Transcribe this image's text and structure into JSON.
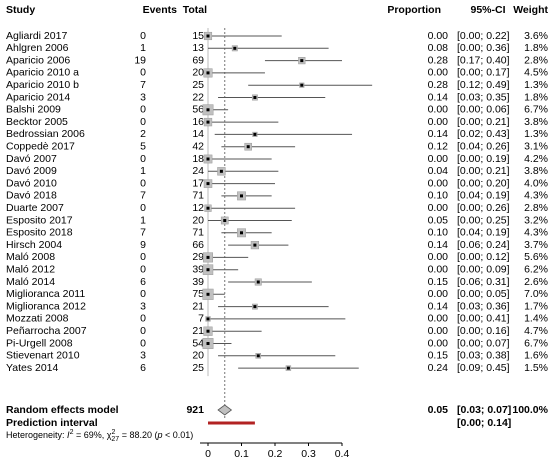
{
  "chart_data": {
    "type": "forest",
    "columns": [
      "Study",
      "Events",
      "Total",
      "Proportion",
      "95%-CI",
      "Weight"
    ],
    "studies": [
      {
        "name": "Agliardi 2017",
        "events": 0,
        "total": 15,
        "proportion": 0,
        "proportion_label": "0.00",
        "ci": [
          0,
          0.22
        ],
        "ci_label": "[0.00; 0.22]",
        "weight": 3.6,
        "weight_label": "3.6%"
      },
      {
        "name": "Ahlgren 2006",
        "events": 1,
        "total": 13,
        "proportion": 0.08,
        "proportion_label": "0.08",
        "ci": [
          0,
          0.36
        ],
        "ci_label": "[0.00; 0.36]",
        "weight": 1.8,
        "weight_label": "1.8%"
      },
      {
        "name": "Aparicio 2006",
        "events": 19,
        "total": 69,
        "proportion": 0.28,
        "proportion_label": "0.28",
        "ci": [
          0.17,
          0.4
        ],
        "ci_label": "[0.17; 0.40]",
        "weight": 2.8,
        "weight_label": "2.8%"
      },
      {
        "name": "Aparicio 2010 a",
        "events": 0,
        "total": 20,
        "proportion": 0,
        "proportion_label": "0.00",
        "ci": [
          0,
          0.17
        ],
        "ci_label": "[0.00; 0.17]",
        "weight": 4.5,
        "weight_label": "4.5%"
      },
      {
        "name": "Aparicio 2010 b",
        "events": 7,
        "total": 25,
        "proportion": 0.28,
        "proportion_label": "0.28",
        "ci": [
          0.12,
          0.49
        ],
        "ci_label": "[0.12; 0.49]",
        "weight": 1.3,
        "weight_label": "1.3%"
      },
      {
        "name": "Aparicio 2014",
        "events": 3,
        "total": 22,
        "proportion": 0.14,
        "proportion_label": "0.14",
        "ci": [
          0.03,
          0.35
        ],
        "ci_label": "[0.03; 0.35]",
        "weight": 1.8,
        "weight_label": "1.8%"
      },
      {
        "name": "Balshi 2009",
        "events": 0,
        "total": 56,
        "proportion": 0,
        "proportion_label": "0.00",
        "ci": [
          0,
          0.06
        ],
        "ci_label": "[0.00; 0.06]",
        "weight": 6.7,
        "weight_label": "6.7%"
      },
      {
        "name": "Becktor 2005",
        "events": 0,
        "total": 16,
        "proportion": 0,
        "proportion_label": "0.00",
        "ci": [
          0,
          0.21
        ],
        "ci_label": "[0.00; 0.21]",
        "weight": 3.8,
        "weight_label": "3.8%"
      },
      {
        "name": "Bedrossian 2006",
        "events": 2,
        "total": 14,
        "proportion": 0.14,
        "proportion_label": "0.14",
        "ci": [
          0.02,
          0.43
        ],
        "ci_label": "[0.02; 0.43]",
        "weight": 1.3,
        "weight_label": "1.3%"
      },
      {
        "name": "Coppedè 2017",
        "events": 5,
        "total": 42,
        "proportion": 0.12,
        "proportion_label": "0.12",
        "ci": [
          0.04,
          0.26
        ],
        "ci_label": "[0.04; 0.26]",
        "weight": 3.1,
        "weight_label": "3.1%"
      },
      {
        "name": "Davó 2007",
        "events": 0,
        "total": 18,
        "proportion": 0,
        "proportion_label": "0.00",
        "ci": [
          0,
          0.19
        ],
        "ci_label": "[0.00; 0.19]",
        "weight": 4.2,
        "weight_label": "4.2%"
      },
      {
        "name": "Davó 2009",
        "events": 1,
        "total": 24,
        "proportion": 0.04,
        "proportion_label": "0.04",
        "ci": [
          0,
          0.21
        ],
        "ci_label": "[0.00; 0.21]",
        "weight": 3.8,
        "weight_label": "3.8%"
      },
      {
        "name": "Davó 2010",
        "events": 0,
        "total": 17,
        "proportion": 0,
        "proportion_label": "0.00",
        "ci": [
          0,
          0.2
        ],
        "ci_label": "[0.00; 0.20]",
        "weight": 4.0,
        "weight_label": "4.0%"
      },
      {
        "name": "Davó 2018",
        "events": 7,
        "total": 71,
        "proportion": 0.1,
        "proportion_label": "0.10",
        "ci": [
          0.04,
          0.19
        ],
        "ci_label": "[0.04; 0.19]",
        "weight": 4.3,
        "weight_label": "4.3%"
      },
      {
        "name": "Duarte 2007",
        "events": 0,
        "total": 12,
        "proportion": 0,
        "proportion_label": "0.00",
        "ci": [
          0,
          0.26
        ],
        "ci_label": "[0.00; 0.26]",
        "weight": 2.8,
        "weight_label": "2.8%"
      },
      {
        "name": "Esposito 2017",
        "events": 1,
        "total": 20,
        "proportion": 0.05,
        "proportion_label": "0.05",
        "ci": [
          0,
          0.25
        ],
        "ci_label": "[0.00; 0.25]",
        "weight": 3.2,
        "weight_label": "3.2%"
      },
      {
        "name": "Esposito 2018",
        "events": 7,
        "total": 71,
        "proportion": 0.1,
        "proportion_label": "0.10",
        "ci": [
          0.04,
          0.19
        ],
        "ci_label": "[0.04; 0.19]",
        "weight": 4.3,
        "weight_label": "4.3%"
      },
      {
        "name": "Hirsch 2004",
        "events": 9,
        "total": 66,
        "proportion": 0.14,
        "proportion_label": "0.14",
        "ci": [
          0.06,
          0.24
        ],
        "ci_label": "[0.06; 0.24]",
        "weight": 3.7,
        "weight_label": "3.7%"
      },
      {
        "name": "Maló 2008",
        "events": 0,
        "total": 29,
        "proportion": 0,
        "proportion_label": "0.00",
        "ci": [
          0,
          0.12
        ],
        "ci_label": "[0.00; 0.12]",
        "weight": 5.6,
        "weight_label": "5.6%"
      },
      {
        "name": "Maló 2012",
        "events": 0,
        "total": 39,
        "proportion": 0,
        "proportion_label": "0.00",
        "ci": [
          0,
          0.09
        ],
        "ci_label": "[0.00; 0.09]",
        "weight": 6.2,
        "weight_label": "6.2%"
      },
      {
        "name": "Maló 2014",
        "events": 6,
        "total": 39,
        "proportion": 0.15,
        "proportion_label": "0.15",
        "ci": [
          0.06,
          0.31
        ],
        "ci_label": "[0.06; 0.31]",
        "weight": 2.6,
        "weight_label": "2.6%"
      },
      {
        "name": "Miglioranca 2011",
        "events": 0,
        "total": 75,
        "proportion": 0,
        "proportion_label": "0.00",
        "ci": [
          0,
          0.05
        ],
        "ci_label": "[0.00; 0.05]",
        "weight": 7.0,
        "weight_label": "7.0%"
      },
      {
        "name": "Miglioranca 2012",
        "events": 3,
        "total": 21,
        "proportion": 0.14,
        "proportion_label": "0.14",
        "ci": [
          0.03,
          0.36
        ],
        "ci_label": "[0.03; 0.36]",
        "weight": 1.7,
        "weight_label": "1.7%"
      },
      {
        "name": "Mozzati 2008",
        "events": 0,
        "total": 7,
        "proportion": 0,
        "proportion_label": "0.00",
        "ci": [
          0,
          0.41
        ],
        "ci_label": "[0.00; 0.41]",
        "weight": 1.4,
        "weight_label": "1.4%"
      },
      {
        "name": "Peñarrocha 2007",
        "events": 0,
        "total": 21,
        "proportion": 0,
        "proportion_label": "0.00",
        "ci": [
          0,
          0.16
        ],
        "ci_label": "[0.00; 0.16]",
        "weight": 4.7,
        "weight_label": "4.7%"
      },
      {
        "name": "Pi-Urgell 2008",
        "events": 0,
        "total": 54,
        "proportion": 0,
        "proportion_label": "0.00",
        "ci": [
          0,
          0.07
        ],
        "ci_label": "[0.00; 0.07]",
        "weight": 6.7,
        "weight_label": "6.7%"
      },
      {
        "name": "Stievenart 2010",
        "events": 3,
        "total": 20,
        "proportion": 0.15,
        "proportion_label": "0.15",
        "ci": [
          0.03,
          0.38
        ],
        "ci_label": "[0.03; 0.38]",
        "weight": 1.6,
        "weight_label": "1.6%"
      },
      {
        "name": "Yates 2014",
        "events": 6,
        "total": 25,
        "proportion": 0.24,
        "proportion_label": "0.24",
        "ci": [
          0.09,
          0.45
        ],
        "ci_label": "[0.09; 0.45]",
        "weight": 1.5,
        "weight_label": "1.5%"
      }
    ],
    "summary": {
      "name": "Random effects model",
      "total": 921,
      "proportion": 0.05,
      "proportion_label": "0.05",
      "ci": [
        0.03,
        0.07
      ],
      "ci_label": "[0.03; 0.07]",
      "weight": 100,
      "weight_label": "100.0%"
    },
    "prediction": {
      "name": "Prediction interval",
      "ci": [
        0,
        0.14
      ],
      "ci_label": "[0.00; 0.14]",
      "color": "#b22222"
    },
    "heterogeneity": [
      "Heterogeneity: ",
      "I",
      "2",
      " = 69%, ",
      "χ",
      "2",
      "27",
      " = 88.20 (",
      "p",
      " < 0.01)"
    ],
    "box_color": "#c0c0c0",
    "xlim": [
      0,
      0.4
    ],
    "xticks": [
      0,
      0.1,
      0.2,
      0.3,
      0.4
    ]
  }
}
